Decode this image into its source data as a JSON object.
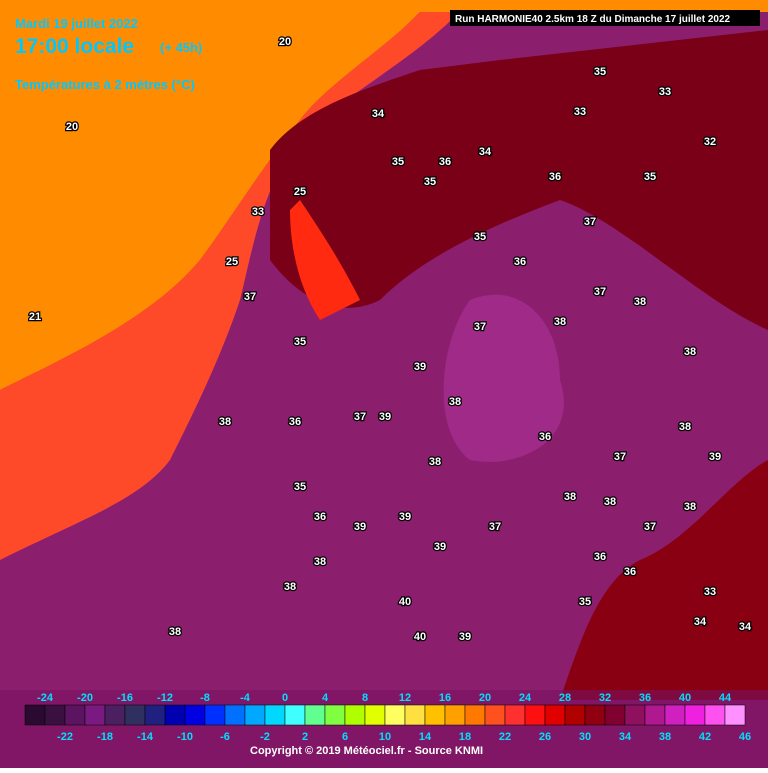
{
  "header": {
    "date": "Mardi 19 juillet 2022",
    "time": "17:00 locale",
    "lead": "(+ 45h)",
    "subtitle": "Températures à 2 mètres (°C)",
    "run": "Run HARMONIE40 2.5km 18 Z du Dimanche 17 juillet 2022"
  },
  "temperatures": [
    20,
    20,
    21,
    25,
    25,
    33,
    34,
    35,
    36,
    34,
    35,
    36,
    33,
    35,
    32,
    33,
    35,
    35,
    36,
    37,
    37,
    37,
    38,
    38,
    38,
    39,
    38,
    37,
    36,
    35,
    37,
    38,
    39,
    38,
    37,
    38,
    38,
    39,
    39,
    38,
    39,
    38,
    40,
    40,
    39,
    38,
    36,
    36,
    35,
    34,
    34,
    33,
    37,
    38,
    39,
    38,
    37,
    36,
    35,
    36
  ],
  "legend": {
    "top_labels": [
      -24,
      -20,
      -16,
      -12,
      -8,
      -4,
      0,
      4,
      8,
      12,
      16,
      20,
      24,
      28,
      32,
      36,
      40,
      44
    ],
    "bottom_labels": [
      -22,
      -18,
      -14,
      -10,
      -6,
      -2,
      2,
      6,
      10,
      14,
      18,
      22,
      26,
      30,
      34,
      38,
      42,
      46
    ]
  },
  "copyright": "Copyright © 2019 Météociel.fr - Source KNMI"
}
